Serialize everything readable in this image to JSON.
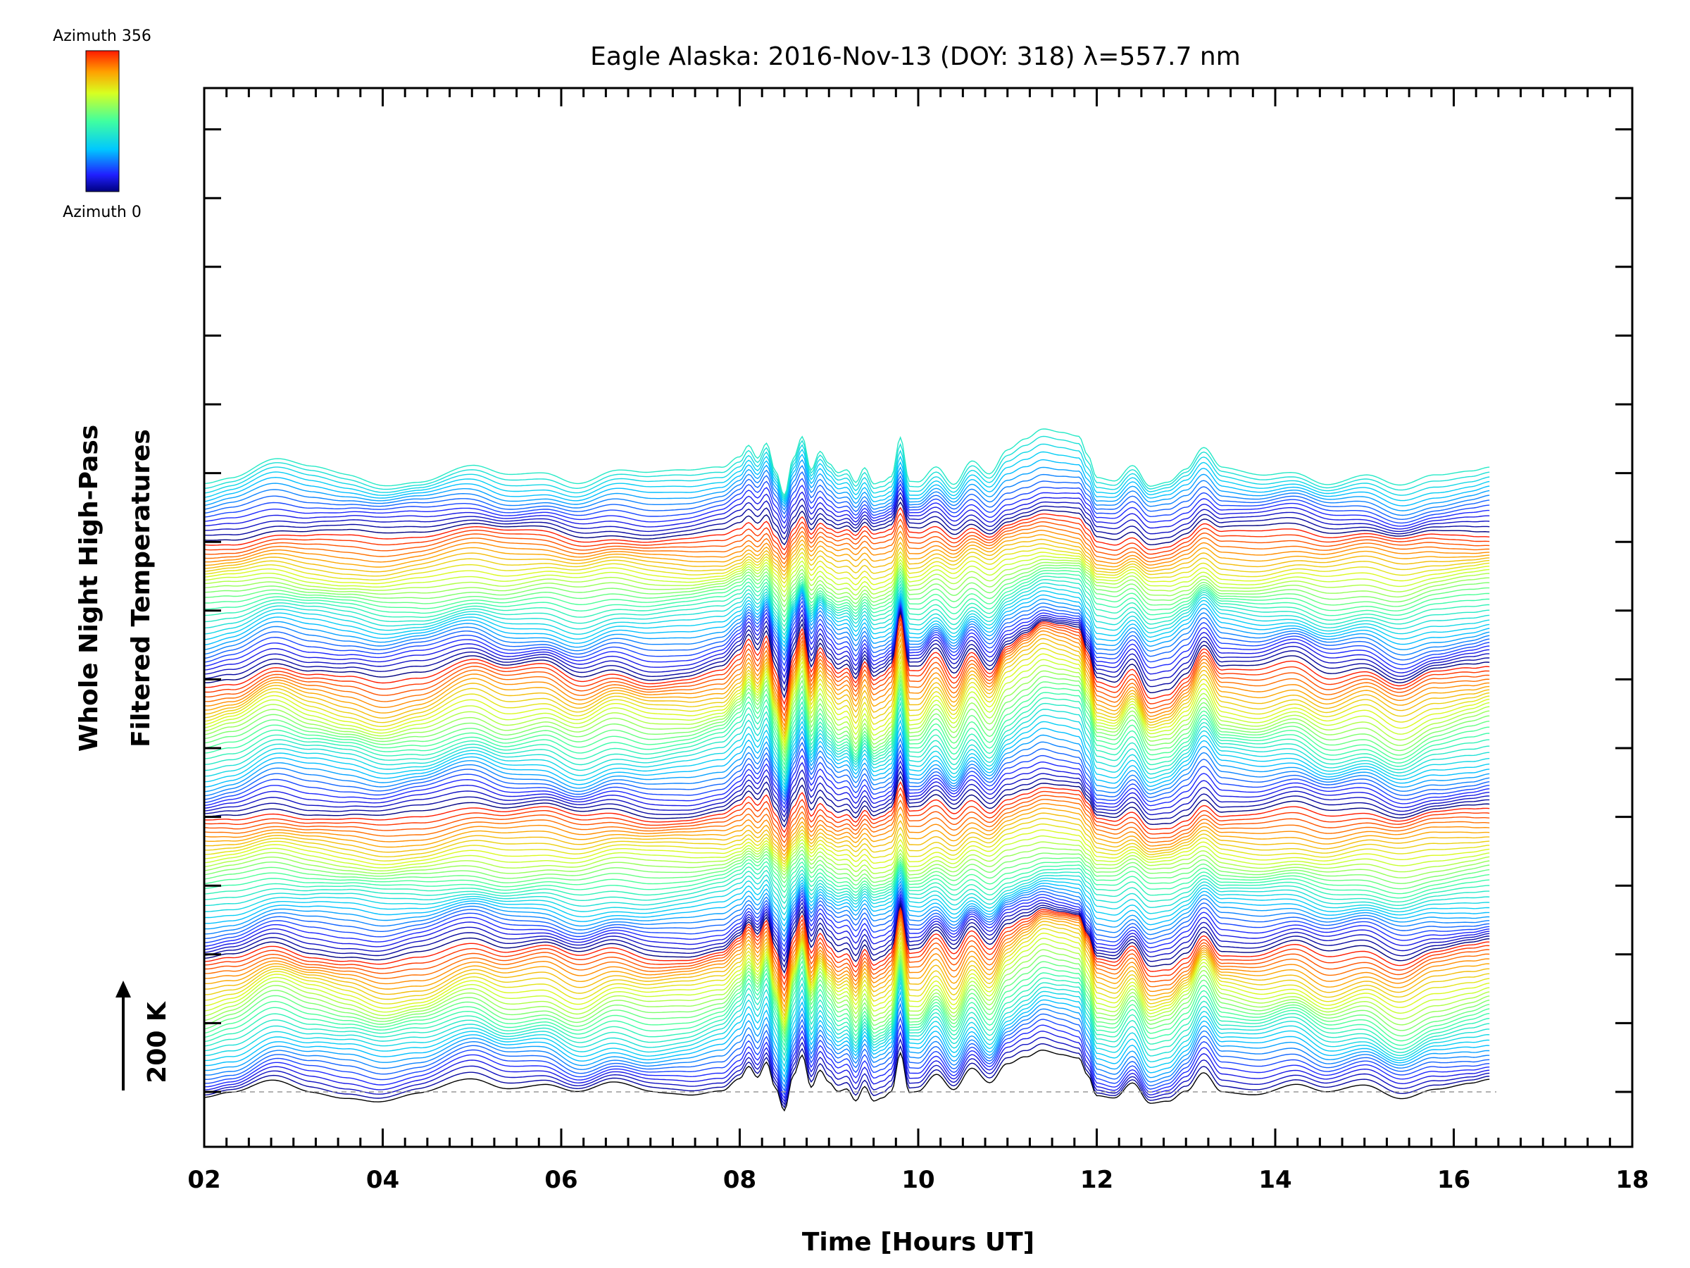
{
  "chart_data": {
    "type": "line",
    "title": "Eagle Alaska: 2016-Nov-13 (DOY: 318) λ=557.7 nm",
    "xlabel": "Time [Hours UT]",
    "ylabel_line1": "Whole Night High-Pass",
    "ylabel_line2": "Filtered Temperatures",
    "xlim": [
      2,
      18
    ],
    "x_tick_labels": [
      "02",
      "04",
      "06",
      "08",
      "10",
      "12",
      "14",
      "16",
      "18"
    ],
    "scale_bar_label": "200 K",
    "colorbar": {
      "top_label": "Azimuth 356",
      "bottom_label": "Azimuth 0",
      "range": [
        0,
        356
      ]
    },
    "time_range": [
      2.0,
      16.4
    ],
    "trace_count": 142,
    "azimuth_cycle": 32,
    "base_profile": {
      "x": [
        2.0,
        2.3,
        2.8,
        3.2,
        3.6,
        4.0,
        4.4,
        5.0,
        5.4,
        5.8,
        6.2,
        6.6,
        7.0,
        7.4,
        7.8,
        8.0,
        8.1,
        8.2,
        8.3,
        8.4,
        8.5,
        8.6,
        8.7,
        8.8,
        8.9,
        9.0,
        9.1,
        9.2,
        9.3,
        9.4,
        9.5,
        9.6,
        9.7,
        9.8,
        9.9,
        10.0,
        10.2,
        10.4,
        10.6,
        10.8,
        11.0,
        11.2,
        11.4,
        11.6,
        11.8,
        11.9,
        12.0,
        12.2,
        12.4,
        12.6,
        12.8,
        13.0,
        13.2,
        13.4,
        13.8,
        14.2,
        14.6,
        15.0,
        15.4,
        15.8,
        16.2,
        16.4
      ],
      "y": [
        -25,
        -10,
        40,
        15,
        0,
        -20,
        -5,
        40,
        10,
        20,
        -15,
        15,
        -5,
        0,
        20,
        60,
        100,
        60,
        110,
        20,
        -60,
        60,
        130,
        20,
        80,
        40,
        10,
        20,
        -20,
        30,
        -20,
        -10,
        10,
        140,
        0,
        0,
        50,
        -10,
        60,
        10,
        80,
        110,
        140,
        130,
        120,
        60,
        -10,
        -20,
        30,
        -40,
        -30,
        10,
        80,
        20,
        10,
        30,
        -10,
        10,
        -30,
        5,
        20,
        30
      ]
    }
  }
}
